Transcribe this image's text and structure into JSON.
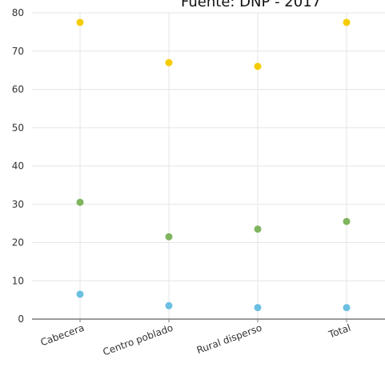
{
  "source": "Fuente: DNP - 2017",
  "chart_data": {
    "type": "scatter",
    "title": "",
    "xlabel": "",
    "ylabel": "",
    "categories": [
      "Cabecera",
      "Centro poblado",
      "Rural disperso",
      "Total"
    ],
    "ylim": [
      0,
      80
    ],
    "yticks": [
      0,
      10,
      20,
      30,
      40,
      50,
      60,
      70,
      80
    ],
    "grid": true,
    "series": [
      {
        "color": "#f5cc00",
        "values": [
          77.5,
          67,
          66,
          77.5
        ]
      },
      {
        "color": "#7fb55f",
        "values": [
          30.5,
          21.5,
          23.5,
          25.5
        ]
      },
      {
        "color": "#6bbfe0",
        "values": [
          6.5,
          3.5,
          3,
          3
        ]
      }
    ]
  }
}
